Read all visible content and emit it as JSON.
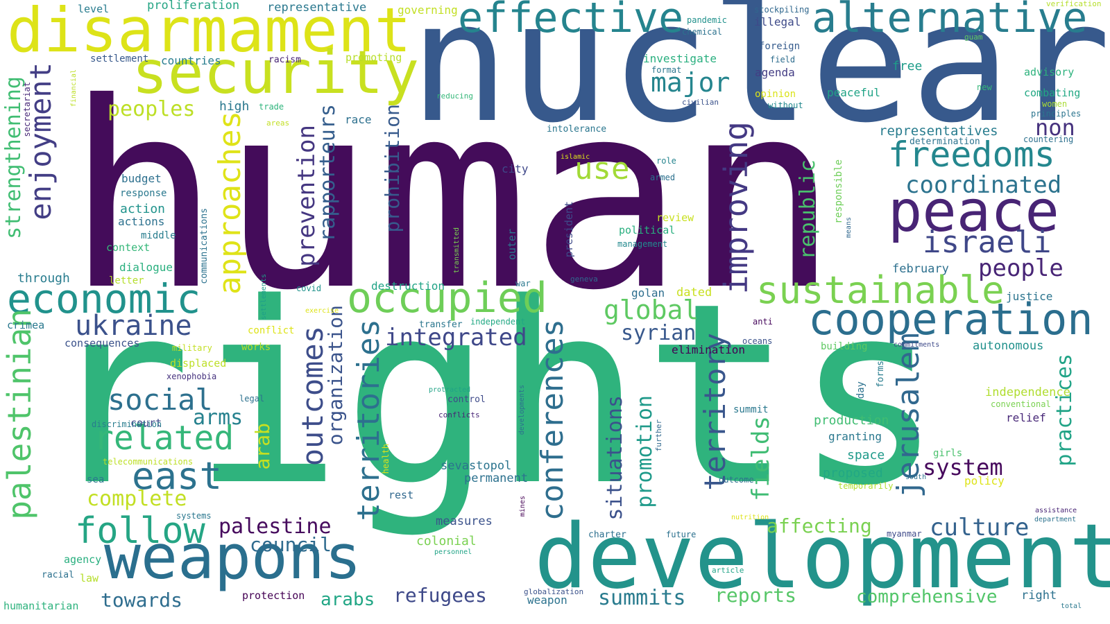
{
  "words": [
    {
      "text": "human",
      "color": "#440c5a",
      "orient": "h"
    },
    {
      "text": "rights",
      "color": "#2fb37d",
      "orient": "h"
    },
    {
      "text": "nuclear",
      "color": "#37598c",
      "orient": "h"
    },
    {
      "text": "development",
      "color": "#23938b",
      "orient": "h"
    },
    {
      "text": "disarmament",
      "color": "#dde318",
      "orient": "h"
    },
    {
      "text": "security",
      "color": "#c8e020",
      "orient": "h"
    },
    {
      "text": "weapons",
      "color": "#2a6f8e",
      "orient": "h"
    },
    {
      "text": "effective",
      "color": "#25848e",
      "orient": "h"
    },
    {
      "text": "alternative",
      "color": "#287d8e",
      "orient": "h"
    },
    {
      "text": "peace",
      "color": "#482475",
      "orient": "h"
    },
    {
      "text": "cooperation",
      "color": "#2b6e8e",
      "orient": "h"
    },
    {
      "text": "freedoms",
      "color": "#24878e",
      "orient": "h"
    },
    {
      "text": "occupied",
      "color": "#6ece58",
      "orient": "h"
    },
    {
      "text": "economic",
      "color": "#21928c",
      "orient": "h"
    },
    {
      "text": "sustainable",
      "color": "#7ad151",
      "orient": "h"
    },
    {
      "text": "palestinian",
      "color": "#4fc46a",
      "orient": "v"
    },
    {
      "text": "approaches",
      "color": "#dfe318",
      "orient": "v"
    },
    {
      "text": "enjoyment",
      "color": "#433e85",
      "orient": "v"
    },
    {
      "text": "israeli",
      "color": "#3f4788",
      "orient": "h"
    },
    {
      "text": "follow",
      "color": "#25a584",
      "orient": "h"
    },
    {
      "text": "east",
      "color": "#2c728e",
      "orient": "h"
    },
    {
      "text": "related",
      "color": "#35b779",
      "orient": "h"
    },
    {
      "text": "improving",
      "color": "#443983",
      "orient": "v"
    },
    {
      "text": "territories",
      "color": "#2d708e",
      "orient": "v"
    },
    {
      "text": "conferences",
      "color": "#2e6e8e",
      "orient": "v"
    },
    {
      "text": "jerusalem",
      "color": "#31688e",
      "orient": "v"
    },
    {
      "text": "ukraine",
      "color": "#3b518b",
      "orient": "h"
    },
    {
      "text": "social",
      "color": "#2d708e",
      "orient": "h"
    },
    {
      "text": "coordinated",
      "color": "#2c738e",
      "orient": "h"
    },
    {
      "text": "outcomes",
      "color": "#3d4d8a",
      "orient": "v"
    },
    {
      "text": "territory",
      "color": "#39568c",
      "orient": "v"
    },
    {
      "text": "integrated",
      "color": "#3f4889",
      "orient": "h"
    },
    {
      "text": "global",
      "color": "#5ec962",
      "orient": "h"
    },
    {
      "text": "use",
      "color": "#a2da37",
      "orient": "h"
    },
    {
      "text": "major",
      "color": "#25858e",
      "orient": "h"
    },
    {
      "text": "people",
      "color": "#482576",
      "orient": "h"
    },
    {
      "text": "culture",
      "color": "#33628d",
      "orient": "h"
    },
    {
      "text": "peoples",
      "color": "#bddf26",
      "orient": "h"
    },
    {
      "text": "strengthening",
      "color": "#40bd72",
      "orient": "v"
    },
    {
      "text": "prevention",
      "color": "#453781",
      "orient": "v"
    },
    {
      "text": "rapporteurs",
      "color": "#355e8d",
      "orient": "v"
    },
    {
      "text": "prohibition",
      "color": "#375a8c",
      "orient": "v"
    },
    {
      "text": "organization",
      "color": "#3a538b",
      "orient": "v"
    },
    {
      "text": "practices",
      "color": "#20a386",
      "orient": "v"
    },
    {
      "text": "republic",
      "color": "#4ac16d",
      "orient": "v"
    },
    {
      "text": "fields",
      "color": "#3fbc73",
      "orient": "v"
    },
    {
      "text": "promotion",
      "color": "#1f9a8a",
      "orient": "v"
    },
    {
      "text": "situations",
      "color": "#3b518b",
      "orient": "v"
    },
    {
      "text": "arab",
      "color": "#c8e020",
      "orient": "v"
    },
    {
      "text": "syrian",
      "color": "#38588c",
      "orient": "h"
    },
    {
      "text": "palestine",
      "color": "#460a5d",
      "orient": "h"
    },
    {
      "text": "complete",
      "color": "#c2df23",
      "orient": "h"
    },
    {
      "text": "arms",
      "color": "#26818e",
      "orient": "h"
    },
    {
      "text": "system",
      "color": "#46085c",
      "orient": "h"
    },
    {
      "text": "non",
      "color": "#46327e",
      "orient": "h"
    },
    {
      "text": "council",
      "color": "#2f6b8e",
      "orient": "h"
    },
    {
      "text": "affecting",
      "color": "#7ad151",
      "orient": "h"
    },
    {
      "text": "reports",
      "color": "#56c667",
      "orient": "h"
    },
    {
      "text": "summits",
      "color": "#297b8e",
      "orient": "h"
    },
    {
      "text": "refugees",
      "color": "#3e4989",
      "orient": "h"
    },
    {
      "text": "comprehensive",
      "color": "#52c569",
      "orient": "h"
    },
    {
      "text": "towards",
      "color": "#2e6d8e",
      "orient": "h"
    },
    {
      "text": "arabs",
      "color": "#21a685",
      "orient": "h"
    },
    {
      "text": "representatives",
      "color": "#287c8e",
      "orient": "h"
    },
    {
      "text": "independence",
      "color": "#b0dd2f",
      "orient": "h"
    },
    {
      "text": "proliferation",
      "color": "#25a584",
      "orient": "h"
    },
    {
      "text": "representative",
      "color": "#2a788e",
      "orient": "h"
    },
    {
      "text": "governing",
      "color": "#c2df23",
      "orient": "h"
    },
    {
      "text": "pandemic",
      "color": "#21918c",
      "orient": "h"
    },
    {
      "text": "chemical",
      "color": "#2c728e",
      "orient": "h"
    },
    {
      "text": "stockpiling",
      "color": "#31688e",
      "orient": "h"
    },
    {
      "text": "illegal",
      "color": "#3e4a89",
      "orient": "h"
    },
    {
      "text": "verification",
      "color": "#b5de2b",
      "orient": "h"
    },
    {
      "text": "guam",
      "color": "#5ec962",
      "orient": "h"
    },
    {
      "text": "level",
      "color": "#287c8e",
      "orient": "h"
    },
    {
      "text": "settlement",
      "color": "#38598c",
      "orient": "h"
    },
    {
      "text": "countries",
      "color": "#287d8e",
      "orient": "h"
    },
    {
      "text": "racism",
      "color": "#482576",
      "orient": "h"
    },
    {
      "text": "promoting",
      "color": "#b8de29",
      "orient": "h"
    },
    {
      "text": "investigate",
      "color": "#29af7f",
      "orient": "h"
    },
    {
      "text": "format",
      "color": "#2a768e",
      "orient": "h"
    },
    {
      "text": "foreign",
      "color": "#365c8d",
      "orient": "h"
    },
    {
      "text": "field",
      "color": "#2e6d8e",
      "orient": "h"
    },
    {
      "text": "agenda",
      "color": "#433d84",
      "orient": "h"
    },
    {
      "text": "free",
      "color": "#1e9c89",
      "orient": "h"
    },
    {
      "text": "advisory",
      "color": "#2db27d",
      "orient": "h"
    },
    {
      "text": "opinion",
      "color": "#dae319",
      "orient": "h"
    },
    {
      "text": "peaceful",
      "color": "#20a386",
      "orient": "h"
    },
    {
      "text": "combating",
      "color": "#22a884",
      "orient": "h"
    },
    {
      "text": "women",
      "color": "#a8db34",
      "orient": "h"
    },
    {
      "text": "principles",
      "color": "#2b748e",
      "orient": "h"
    },
    {
      "text": "countering",
      "color": "#2d708e",
      "orient": "h"
    },
    {
      "text": "new",
      "color": "#35b779",
      "orient": "h"
    },
    {
      "text": "without",
      "color": "#23898e",
      "orient": "h"
    },
    {
      "text": "civilian",
      "color": "#3b528b",
      "orient": "h"
    },
    {
      "text": "reducing",
      "color": "#35b779",
      "orient": "h"
    },
    {
      "text": "financial",
      "color": "#bddf26",
      "orient": "v"
    },
    {
      "text": "secretariat",
      "color": "#482878",
      "orient": "v"
    },
    {
      "text": "trade",
      "color": "#2fb47c",
      "orient": "h"
    },
    {
      "text": "high",
      "color": "#2a788e",
      "orient": "h"
    },
    {
      "text": "race",
      "color": "#2d708e",
      "orient": "h"
    },
    {
      "text": "areas",
      "color": "#c2df23",
      "orient": "h"
    },
    {
      "text": "intolerance",
      "color": "#2a768e",
      "orient": "h"
    },
    {
      "text": "determination",
      "color": "#2c738e",
      "orient": "h"
    },
    {
      "text": "islamic",
      "color": "#dde318",
      "orient": "h"
    },
    {
      "text": "role",
      "color": "#25848e",
      "orient": "h"
    },
    {
      "text": "armed",
      "color": "#2c718e",
      "orient": "h"
    },
    {
      "text": "city",
      "color": "#3f4889",
      "orient": "h"
    },
    {
      "text": "responsible",
      "color": "#6ece58",
      "orient": "v"
    },
    {
      "text": "means",
      "color": "#31688e",
      "orient": "v"
    },
    {
      "text": "budget",
      "color": "#2d708e",
      "orient": "h"
    },
    {
      "text": "response",
      "color": "#2a788e",
      "orient": "h"
    },
    {
      "text": "action",
      "color": "#20938c",
      "orient": "h"
    },
    {
      "text": "actions",
      "color": "#2c718e",
      "orient": "h"
    },
    {
      "text": "middle",
      "color": "#287d8e",
      "orient": "h"
    },
    {
      "text": "context",
      "color": "#35b779",
      "orient": "h"
    },
    {
      "text": "dialogue",
      "color": "#2ab07f",
      "orient": "h"
    },
    {
      "text": "through",
      "color": "#287c8e",
      "orient": "h"
    },
    {
      "text": "letter",
      "color": "#b5de2b",
      "orient": "h"
    },
    {
      "text": "review",
      "color": "#c8e020",
      "orient": "h"
    },
    {
      "text": "political",
      "color": "#29af7f",
      "orient": "h"
    },
    {
      "text": "management",
      "color": "#23898e",
      "orient": "h"
    },
    {
      "text": "president",
      "color": "#3e4a89",
      "orient": "v"
    },
    {
      "text": "outer",
      "color": "#2a778e",
      "orient": "v"
    },
    {
      "text": "communications",
      "color": "#2c728e",
      "orient": "v"
    },
    {
      "text": "transmitted",
      "color": "#7ad151",
      "orient": "v"
    },
    {
      "text": "settlements",
      "color": "#1f9e89",
      "orient": "v"
    },
    {
      "text": "february",
      "color": "#2d708e",
      "orient": "h"
    },
    {
      "text": "justice",
      "color": "#2b748e",
      "orient": "h"
    },
    {
      "text": "dated",
      "color": "#c8e020",
      "orient": "h"
    },
    {
      "text": "golan",
      "color": "#2e6e8e",
      "orient": "h"
    },
    {
      "text": "geneva",
      "color": "#31688e",
      "orient": "h"
    },
    {
      "text": "war",
      "color": "#2a788e",
      "orient": "h"
    },
    {
      "text": "destruction",
      "color": "#20a386",
      "orient": "h"
    },
    {
      "text": "covid",
      "color": "#20928c",
      "orient": "h"
    },
    {
      "text": "exercise",
      "color": "#dde318",
      "orient": "h"
    },
    {
      "text": "independent",
      "color": "#22a884",
      "orient": "h"
    },
    {
      "text": "transfer",
      "color": "#2a768e",
      "orient": "h"
    },
    {
      "text": "crimea",
      "color": "#2a788e",
      "orient": "h"
    },
    {
      "text": "consequences",
      "color": "#3b528b",
      "orient": "h"
    },
    {
      "text": "conflict",
      "color": "#dde318",
      "orient": "h"
    },
    {
      "text": "works",
      "color": "#b5de2b",
      "orient": "h"
    },
    {
      "text": "military",
      "color": "#c2df23",
      "orient": "h"
    },
    {
      "text": "displaced",
      "color": "#bddf26",
      "orient": "h"
    },
    {
      "text": "xenophobia",
      "color": "#46327e",
      "orient": "h"
    },
    {
      "text": "elimination",
      "color": "#440154",
      "orient": "h"
    },
    {
      "text": "anti",
      "color": "#46085c",
      "orient": "h"
    },
    {
      "text": "oceans",
      "color": "#3b528b",
      "orient": "h"
    },
    {
      "text": "building",
      "color": "#5ec962",
      "orient": "h"
    },
    {
      "text": "commitments",
      "color": "#3e4a89",
      "orient": "h"
    },
    {
      "text": "autonomous",
      "color": "#21918c",
      "orient": "h"
    },
    {
      "text": "legal",
      "color": "#2c718e",
      "orient": "h"
    },
    {
      "text": "court",
      "color": "#3f4788",
      "orient": "h"
    },
    {
      "text": "discrimination",
      "color": "#287c8e",
      "orient": "h"
    },
    {
      "text": "protracted",
      "color": "#20a386",
      "orient": "h"
    },
    {
      "text": "control",
      "color": "#3e4a89",
      "orient": "h"
    },
    {
      "text": "conflicts",
      "color": "#482475",
      "orient": "h"
    },
    {
      "text": "developments",
      "color": "#2d708e",
      "orient": "v"
    },
    {
      "text": "further",
      "color": "#31688e",
      "orient": "v"
    },
    {
      "text": "forms",
      "color": "#287c8e",
      "orient": "v"
    },
    {
      "text": "day",
      "color": "#2c728e",
      "orient": "v"
    },
    {
      "text": "summit",
      "color": "#2a788e",
      "orient": "h"
    },
    {
      "text": "production",
      "color": "#40bd72",
      "orient": "h"
    },
    {
      "text": "granting",
      "color": "#2a788e",
      "orient": "h"
    },
    {
      "text": "space",
      "color": "#1f9a8a",
      "orient": "h"
    },
    {
      "text": "proposed",
      "color": "#22a884",
      "orient": "h"
    },
    {
      "text": "temporarily",
      "color": "#b0dd2f",
      "orient": "h"
    },
    {
      "text": "outcome",
      "color": "#2d708e",
      "orient": "h"
    },
    {
      "text": "south",
      "color": "#2c728e",
      "orient": "h"
    },
    {
      "text": "girls",
      "color": "#4ac16d",
      "orient": "h"
    },
    {
      "text": "policy",
      "color": "#dde318",
      "orient": "h"
    },
    {
      "text": "conventional",
      "color": "#7ad151",
      "orient": "h"
    },
    {
      "text": "relief",
      "color": "#482878",
      "orient": "h"
    },
    {
      "text": "telecommunications",
      "color": "#bddf26",
      "orient": "h"
    },
    {
      "text": "health",
      "color": "#dae319",
      "orient": "v"
    },
    {
      "text": "sea",
      "color": "#2a788e",
      "orient": "h"
    },
    {
      "text": "sevastopol",
      "color": "#2b748e",
      "orient": "h"
    },
    {
      "text": "permanent",
      "color": "#2c718e",
      "orient": "h"
    },
    {
      "text": "rest",
      "color": "#31688e",
      "orient": "h"
    },
    {
      "text": "mines",
      "color": "#440154",
      "orient": "v"
    },
    {
      "text": "systems",
      "color": "#2a778e",
      "orient": "h"
    },
    {
      "text": "measures",
      "color": "#3b528b",
      "orient": "h"
    },
    {
      "text": "colonial",
      "color": "#7ad151",
      "orient": "h"
    },
    {
      "text": "personnel",
      "color": "#20a386",
      "orient": "h"
    },
    {
      "text": "nutrition",
      "color": "#dde318",
      "orient": "h"
    },
    {
      "text": "myanmar",
      "color": "#3e4a89",
      "orient": "h"
    },
    {
      "text": "assistance",
      "color": "#482475",
      "orient": "h"
    },
    {
      "text": "department",
      "color": "#2c728e",
      "orient": "h"
    },
    {
      "text": "charter",
      "color": "#2d708e",
      "orient": "h"
    },
    {
      "text": "future",
      "color": "#2c718e",
      "orient": "h"
    },
    {
      "text": "agency",
      "color": "#29af7f",
      "orient": "h"
    },
    {
      "text": "racial",
      "color": "#2c718e",
      "orient": "h"
    },
    {
      "text": "law",
      "color": "#b5de2b",
      "orient": "h"
    },
    {
      "text": "article",
      "color": "#20a386",
      "orient": "h"
    },
    {
      "text": "protection",
      "color": "#440154",
      "orient": "h"
    },
    {
      "text": "globalization",
      "color": "#3b528b",
      "orient": "h"
    },
    {
      "text": "weapon",
      "color": "#2c728e",
      "orient": "h"
    },
    {
      "text": "humanitarian",
      "color": "#2db27d",
      "orient": "h"
    },
    {
      "text": "right",
      "color": "#2c718e",
      "orient": "h"
    },
    {
      "text": "total",
      "color": "#2a788e",
      "orient": "h"
    }
  ]
}
